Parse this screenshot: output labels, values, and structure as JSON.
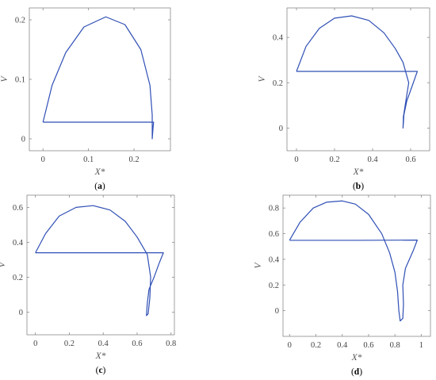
{
  "chart_data": [
    {
      "panel": "(a)",
      "type": "line",
      "xlabel": "X*",
      "ylabel": "V",
      "xlim": [
        -0.03,
        0.28
      ],
      "ylim": [
        -0.02,
        0.22
      ],
      "xticks": [
        0,
        0.1,
        0.2
      ],
      "xtick_labels": [
        "0",
        "0.1",
        "0.2"
      ],
      "yticks": [
        0,
        0.1,
        0.2
      ],
      "ytick_labels": [
        "0",
        "0.1",
        "0.2"
      ],
      "grid": false,
      "series": [
        {
          "color": "#2f4fb5",
          "points": [
            [
              0,
              0.028
            ],
            [
              0.02,
              0.09
            ],
            [
              0.05,
              0.145
            ],
            [
              0.09,
              0.188
            ],
            [
              0.138,
              0.205
            ],
            [
              0.18,
              0.192
            ],
            [
              0.215,
              0.15
            ],
            [
              0.235,
              0.09
            ],
            [
              0.24,
              0.04
            ],
            [
              0.24,
              0.0
            ],
            [
              0.242,
              0.02
            ],
            [
              0.243,
              0.028
            ],
            [
              0.1,
              0.028
            ],
            [
              0,
              0.028
            ]
          ]
        }
      ]
    },
    {
      "panel": "(b)",
      "type": "line",
      "xlabel": "X*",
      "ylabel": "V",
      "xlim": [
        -0.05,
        0.7
      ],
      "ylim": [
        -0.1,
        0.53
      ],
      "xticks": [
        0,
        0.2,
        0.4,
        0.6
      ],
      "xtick_labels": [
        "0",
        "0.2",
        "0.4",
        "0.6"
      ],
      "yticks": [
        0,
        0.2,
        0.4
      ],
      "ytick_labels": [
        "0",
        "0.2",
        "0.4"
      ],
      "grid": false,
      "series": [
        {
          "color": "#2f4fb5",
          "points": [
            [
              0,
              0.25
            ],
            [
              0.05,
              0.36
            ],
            [
              0.12,
              0.44
            ],
            [
              0.2,
              0.485
            ],
            [
              0.29,
              0.495
            ],
            [
              0.38,
              0.475
            ],
            [
              0.46,
              0.42
            ],
            [
              0.52,
              0.35
            ],
            [
              0.56,
              0.29
            ],
            [
              0.59,
              0.2
            ],
            [
              0.575,
              0.12
            ],
            [
              0.562,
              0.05
            ],
            [
              0.56,
              0.0
            ],
            [
              0.565,
              0.06
            ],
            [
              0.58,
              0.12
            ],
            [
              0.61,
              0.19
            ],
            [
              0.635,
              0.25
            ],
            [
              0.3,
              0.25
            ],
            [
              0,
              0.25
            ]
          ]
        }
      ]
    },
    {
      "panel": "(c)",
      "type": "line",
      "xlabel": "X*",
      "ylabel": "V",
      "xlim": [
        -0.05,
        0.82
      ],
      "ylim": [
        -0.13,
        0.67
      ],
      "xticks": [
        0,
        0.2,
        0.4,
        0.6,
        0.8
      ],
      "xtick_labels": [
        "0",
        "0.2",
        "0.4",
        "0.6",
        "0.8"
      ],
      "yticks": [
        0,
        0.2,
        0.4,
        0.6
      ],
      "ytick_labels": [
        "0",
        "0.2",
        "0.4",
        "0.6"
      ],
      "grid": false,
      "series": [
        {
          "color": "#2f4fb5",
          "points": [
            [
              0,
              0.34
            ],
            [
              0.06,
              0.45
            ],
            [
              0.14,
              0.55
            ],
            [
              0.24,
              0.6
            ],
            [
              0.34,
              0.61
            ],
            [
              0.44,
              0.585
            ],
            [
              0.53,
              0.52
            ],
            [
              0.6,
              0.43
            ],
            [
              0.66,
              0.33
            ],
            [
              0.68,
              0.2
            ],
            [
              0.675,
              0.08
            ],
            [
              0.665,
              -0.01
            ],
            [
              0.655,
              -0.02
            ],
            [
              0.66,
              0.05
            ],
            [
              0.67,
              0.13
            ],
            [
              0.7,
              0.2
            ],
            [
              0.73,
              0.28
            ],
            [
              0.755,
              0.34
            ],
            [
              0.4,
              0.34
            ],
            [
              0,
              0.34
            ]
          ]
        }
      ]
    },
    {
      "panel": "(d)",
      "type": "line",
      "xlabel": "X*",
      "ylabel": "V",
      "xlim": [
        -0.05,
        1.07
      ],
      "ylim": [
        -0.2,
        0.9
      ],
      "xticks": [
        0,
        0.2,
        0.4,
        0.6,
        0.8,
        1
      ],
      "xtick_labels": [
        "0",
        "0.2",
        "0.4",
        "0.6",
        "0.8",
        "1"
      ],
      "yticks": [
        0,
        0.2,
        0.4,
        0.6,
        0.8
      ],
      "ytick_labels": [
        "0",
        "0.2",
        "0.4",
        "0.6",
        "0.8"
      ],
      "grid": false,
      "series": [
        {
          "color": "#2f4fb5",
          "points": [
            [
              0,
              0.55
            ],
            [
              0.08,
              0.69
            ],
            [
              0.18,
              0.8
            ],
            [
              0.28,
              0.845
            ],
            [
              0.4,
              0.855
            ],
            [
              0.5,
              0.83
            ],
            [
              0.6,
              0.75
            ],
            [
              0.7,
              0.6
            ],
            [
              0.76,
              0.45
            ],
            [
              0.8,
              0.3
            ],
            [
              0.82,
              0.15
            ],
            [
              0.83,
              0.0
            ],
            [
              0.84,
              -0.08
            ],
            [
              0.86,
              -0.06
            ],
            [
              0.865,
              0.05
            ],
            [
              0.86,
              0.2
            ],
            [
              0.88,
              0.33
            ],
            [
              0.94,
              0.47
            ],
            [
              0.97,
              0.55
            ],
            [
              0.5,
              0.548
            ],
            [
              0,
              0.548
            ]
          ]
        }
      ]
    }
  ]
}
